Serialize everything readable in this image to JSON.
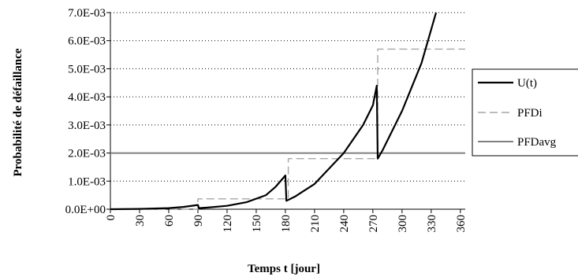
{
  "chart_data": {
    "type": "line",
    "xlabel": "Temps t [jour]",
    "ylabel": "Probabilité de défaillance",
    "xlim": [
      0,
      365
    ],
    "ylim": [
      0,
      0.007
    ],
    "x_ticks": [
      0,
      30,
      60,
      90,
      120,
      150,
      180,
      210,
      240,
      270,
      300,
      330,
      360
    ],
    "x_tick_labels": [
      "0",
      "30",
      "60",
      "90",
      "120",
      "150",
      "180",
      "210",
      "240",
      "270",
      "300",
      "330",
      "360"
    ],
    "y_ticks": [
      0,
      0.001,
      0.002,
      0.003,
      0.004,
      0.005,
      0.006,
      0.007
    ],
    "y_tick_labels": [
      "0.0E+00",
      "1.0E-03",
      "2.0E-03",
      "3.0E-03",
      "4.0E-03",
      "5.0E-03",
      "6.0E-03",
      "7.0E-03"
    ],
    "grid": "horizontal dotted",
    "legend_position": "right",
    "series": [
      {
        "name": "U(t)",
        "style": "solid",
        "color": "#000000",
        "x": [
          0,
          30,
          60,
          75,
          90,
          91,
          100,
          120,
          140,
          160,
          170,
          180,
          181,
          190,
          210,
          240,
          260,
          270,
          274,
          275,
          280,
          300,
          320,
          335
        ],
        "y": [
          0,
          1e-05,
          4e-05,
          8e-05,
          0.00015,
          4e-05,
          6e-05,
          0.00012,
          0.00025,
          0.0005,
          0.0008,
          0.0012,
          0.0003,
          0.00045,
          0.0009,
          0.002,
          0.003,
          0.0037,
          0.0044,
          0.0018,
          0.0021,
          0.0035,
          0.0052,
          0.007
        ]
      },
      {
        "name": "PFDi",
        "style": "dashed",
        "color": "#a6a6a6",
        "x": [
          0,
          90,
          90,
          183,
          183,
          275,
          275,
          365
        ],
        "y": [
          0,
          0,
          0.00037,
          0.00037,
          0.0018,
          0.0018,
          0.0057,
          0.0057
        ]
      },
      {
        "name": "PFDavg",
        "style": "solid",
        "color": "#808080",
        "x": [
          0,
          365
        ],
        "y": [
          0.002,
          0.002
        ]
      }
    ]
  },
  "colors": {
    "u_line": "#000000",
    "pfdi_line": "#a6a6a6",
    "pfdavg_line": "#808080",
    "grid": "#000000"
  }
}
